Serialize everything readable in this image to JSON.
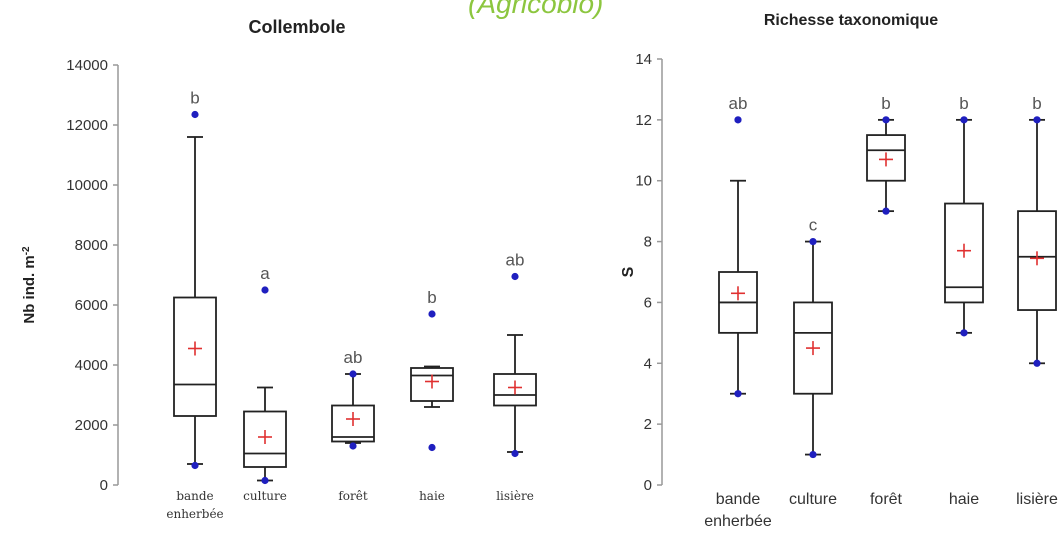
{
  "banner": "(Agricobio)",
  "chart_data": [
    {
      "type": "box",
      "title": "Collembole",
      "ylabel": "Nb ind. m-2",
      "ylim": [
        0,
        14000
      ],
      "yticks": [
        0,
        2000,
        4000,
        6000,
        8000,
        10000,
        12000,
        14000
      ],
      "categories": [
        "bande\nenherbée",
        "culture",
        "forêt",
        "haie",
        "lisière"
      ],
      "boxes": [
        {
          "category": "bande enherbée",
          "whisker_low": 700,
          "q1": 2300,
          "median": 3350,
          "q3": 6250,
          "whisker_high": 11600,
          "mean": 4550,
          "outliers": [
            12350,
            650
          ],
          "letter": "b"
        },
        {
          "category": "culture",
          "whisker_low": 150,
          "q1": 600,
          "median": 1050,
          "q3": 2450,
          "whisker_high": 3250,
          "mean": 1600,
          "outliers": [
            6500,
            150
          ],
          "letter": "a"
        },
        {
          "category": "forêt",
          "whisker_low": 1400,
          "q1": 1450,
          "median": 1600,
          "q3": 2650,
          "whisker_high": 3700,
          "mean": 2200,
          "outliers": [
            3700,
            1300
          ],
          "letter": "ab"
        },
        {
          "category": "haie",
          "whisker_low": 2600,
          "q1": 2800,
          "median": 3650,
          "q3": 3900,
          "whisker_high": 3950,
          "mean": 3450,
          "outliers": [
            5700,
            1250
          ],
          "letter": "b"
        },
        {
          "category": "lisière",
          "whisker_low": 1100,
          "q1": 2650,
          "median": 3000,
          "q3": 3700,
          "whisker_high": 5000,
          "mean": 3250,
          "outliers": [
            6950,
            1050
          ],
          "letter": "ab"
        }
      ]
    },
    {
      "type": "box",
      "title": "Richesse taxonomique",
      "ylabel": "S",
      "ylim": [
        0,
        14
      ],
      "yticks": [
        0,
        2,
        4,
        6,
        8,
        10,
        12,
        14
      ],
      "categories": [
        "bande\nenherbée",
        "culture",
        "forêt",
        "haie",
        "lisière"
      ],
      "boxes": [
        {
          "category": "bande enherbée",
          "whisker_low": 3,
          "q1": 5,
          "median": 6,
          "q3": 7,
          "whisker_high": 10,
          "mean": 6.3,
          "outliers": [
            12,
            3
          ],
          "letter": "ab"
        },
        {
          "category": "culture",
          "whisker_low": 1,
          "q1": 3,
          "median": 5,
          "q3": 6,
          "whisker_high": 8,
          "mean": 4.5,
          "outliers": [
            8,
            1
          ],
          "letter": "c"
        },
        {
          "category": "forêt",
          "whisker_low": 9,
          "q1": 10,
          "median": 11,
          "q3": 11.5,
          "whisker_high": 12,
          "mean": 10.7,
          "outliers": [
            12,
            9
          ],
          "letter": "b"
        },
        {
          "category": "haie",
          "whisker_low": 5,
          "q1": 6,
          "median": 6.5,
          "q3": 9.25,
          "whisker_high": 12,
          "mean": 7.7,
          "outliers": [
            12,
            5
          ],
          "letter": "b"
        },
        {
          "category": "lisière",
          "whisker_low": 4,
          "q1": 5.75,
          "median": 7.5,
          "q3": 9,
          "whisker_high": 12,
          "mean": 7.45,
          "outliers": [
            12,
            4
          ],
          "letter": "b"
        }
      ]
    }
  ],
  "colors": {
    "box": "#222222",
    "outlier": "#1f1fbf",
    "mean": "#e03030",
    "letter": "#555555",
    "axis": "#999999",
    "banner": "#8cc63f"
  }
}
